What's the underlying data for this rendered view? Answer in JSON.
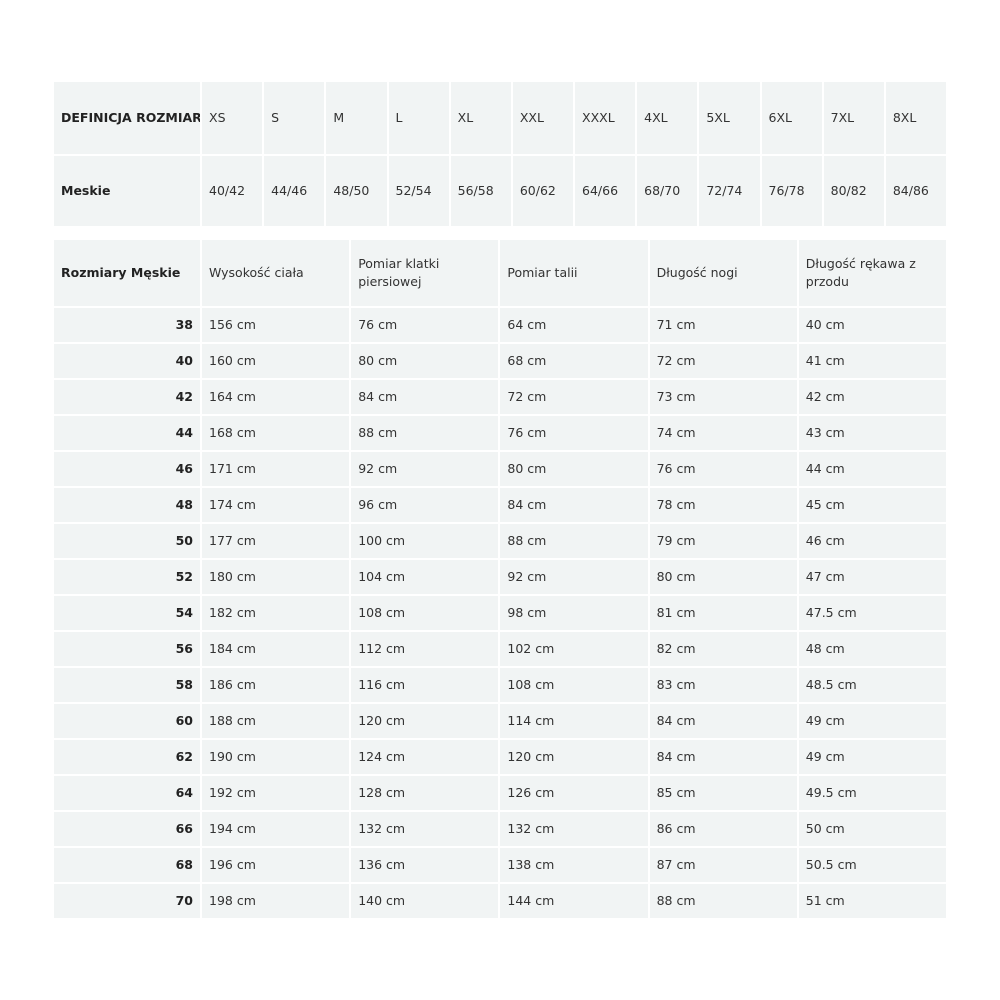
{
  "size_definition": {
    "header_label": "DEFINICJA ROZMIARU",
    "sizes": [
      "XS",
      "S",
      "M",
      "L",
      "XL",
      "XXL",
      "XXXL",
      "4XL",
      "5XL",
      "6XL",
      "7XL",
      "8XL"
    ],
    "row_label": "Meskie",
    "values": [
      "40/42",
      "44/46",
      "48/50",
      "52/54",
      "56/58",
      "60/62",
      "64/66",
      "68/70",
      "72/74",
      "76/78",
      "80/82",
      "84/86"
    ]
  },
  "measurements": {
    "headers": [
      "Rozmiary Męskie",
      "Wysokość ciała",
      "Pomiar klatki piersiowej",
      "Pomiar talii",
      "Długość nogi",
      "Długość rękawa z przodu"
    ],
    "rows": [
      [
        "38",
        "156 cm",
        "76 cm",
        "64 cm",
        "71 cm",
        "40 cm"
      ],
      [
        "40",
        "160 cm",
        "80 cm",
        "68 cm",
        "72 cm",
        "41 cm"
      ],
      [
        "42",
        "164 cm",
        "84 cm",
        "72 cm",
        "73 cm",
        "42 cm"
      ],
      [
        "44",
        "168 cm",
        "88 cm",
        "76 cm",
        "74 cm",
        "43 cm"
      ],
      [
        "46",
        "171 cm",
        "92 cm",
        "80 cm",
        "76 cm",
        "44 cm"
      ],
      [
        "48",
        "174 cm",
        "96 cm",
        "84 cm",
        "78 cm",
        "45 cm"
      ],
      [
        "50",
        "177 cm",
        "100 cm",
        "88 cm",
        "79 cm",
        "46 cm"
      ],
      [
        "52",
        "180 cm",
        "104 cm",
        "92 cm",
        "80 cm",
        "47 cm"
      ],
      [
        "54",
        "182 cm",
        "108 cm",
        "98 cm",
        "81 cm",
        "47.5 cm"
      ],
      [
        "56",
        "184 cm",
        "112 cm",
        "102 cm",
        "82 cm",
        "48 cm"
      ],
      [
        "58",
        "186 cm",
        "116 cm",
        "108 cm",
        "83 cm",
        "48.5 cm"
      ],
      [
        "60",
        "188 cm",
        "120 cm",
        "114 cm",
        "84 cm",
        "49 cm"
      ],
      [
        "62",
        "190 cm",
        "124 cm",
        "120 cm",
        "84 cm",
        "49 cm"
      ],
      [
        "64",
        "192 cm",
        "128 cm",
        "126 cm",
        "85 cm",
        "49.5 cm"
      ],
      [
        "66",
        "194 cm",
        "132 cm",
        "132 cm",
        "86 cm",
        "50 cm"
      ],
      [
        "68",
        "196 cm",
        "136 cm",
        "138 cm",
        "87 cm",
        "50.5 cm"
      ],
      [
        "70",
        "198 cm",
        "140 cm",
        "144 cm",
        "88 cm",
        "51 cm"
      ]
    ]
  }
}
